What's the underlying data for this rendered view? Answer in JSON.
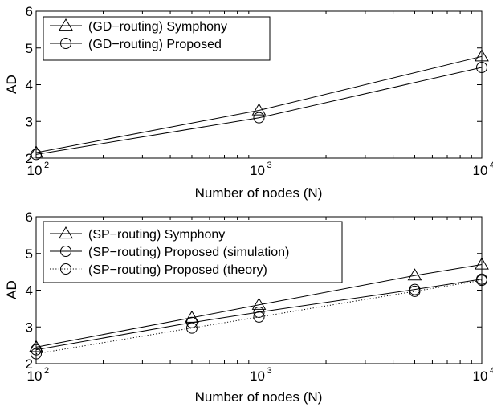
{
  "chart_data": [
    {
      "type": "line",
      "xscale": "log",
      "xlim": [
        100,
        10000
      ],
      "ylim": [
        2,
        6
      ],
      "xticks": [
        {
          "value": 100,
          "base": "10",
          "exp": "2"
        },
        {
          "value": 1000,
          "base": "10",
          "exp": "3"
        },
        {
          "value": 10000,
          "base": "10",
          "exp": "4"
        }
      ],
      "yticks": [
        "2",
        "3",
        "4",
        "5",
        "6"
      ],
      "xlabel": "Number of nodes (N)",
      "ylabel": "AD",
      "legend_position": "top-left",
      "series": [
        {
          "name": "(GD−routing) Symphony",
          "marker": "triangle",
          "line": "solid",
          "x": [
            100,
            1000,
            10000
          ],
          "y": [
            2.15,
            3.3,
            4.77
          ]
        },
        {
          "name": "(GD−routing) Proposed",
          "marker": "circle",
          "line": "solid",
          "x": [
            100,
            1000,
            10000
          ],
          "y": [
            2.1,
            3.1,
            4.47
          ]
        }
      ]
    },
    {
      "type": "line",
      "xscale": "log",
      "xlim": [
        100,
        10000
      ],
      "ylim": [
        2,
        6
      ],
      "xticks": [
        {
          "value": 100,
          "base": "10",
          "exp": "2"
        },
        {
          "value": 1000,
          "base": "10",
          "exp": "3"
        },
        {
          "value": 10000,
          "base": "10",
          "exp": "4"
        }
      ],
      "yticks": [
        "2",
        "3",
        "4",
        "5",
        "6"
      ],
      "xlabel": "Number of nodes (N)",
      "ylabel": "AD",
      "legend_position": "top-left",
      "series": [
        {
          "name": "(SP−routing) Symphony",
          "marker": "triangle",
          "line": "solid",
          "x": [
            100,
            500,
            1000,
            5000,
            10000
          ],
          "y": [
            2.45,
            3.25,
            3.6,
            4.4,
            4.7
          ]
        },
        {
          "name": "(SP−routing) Proposed (simulation)",
          "marker": "circle",
          "line": "solid",
          "x": [
            100,
            500,
            1000,
            5000,
            10000
          ],
          "y": [
            2.38,
            3.12,
            3.4,
            4.02,
            4.3
          ]
        },
        {
          "name": "(SP−routing) Proposed (theory)",
          "marker": "circle",
          "line": "dotted",
          "x": [
            100,
            500,
            1000,
            5000,
            10000
          ],
          "y": [
            2.27,
            2.97,
            3.27,
            3.97,
            4.27
          ]
        }
      ]
    }
  ]
}
